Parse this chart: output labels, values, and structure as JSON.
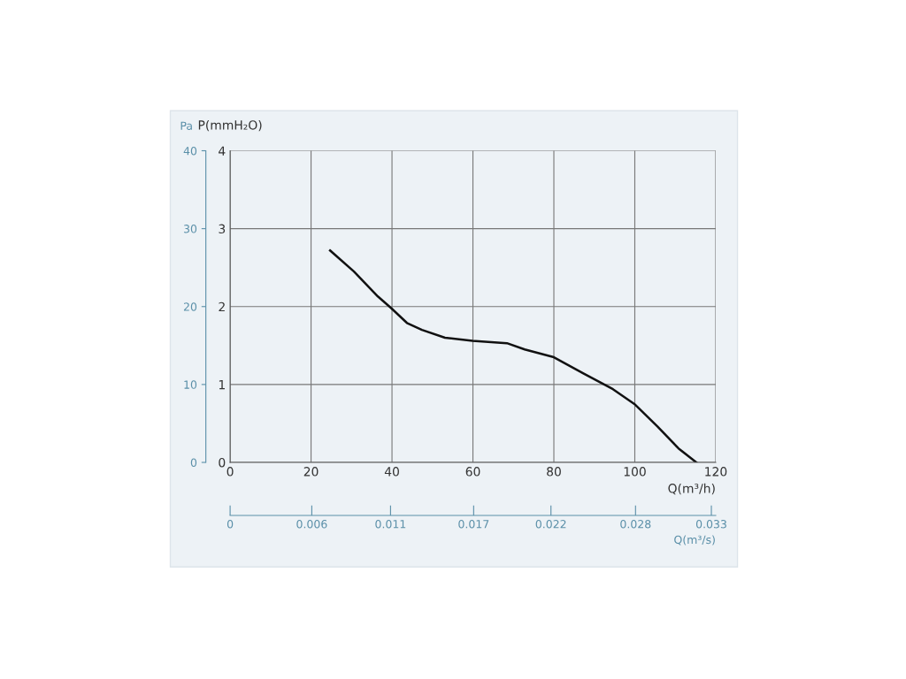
{
  "chart_data": {
    "type": "line",
    "xlabel": "Q(m³/h)",
    "ylabel": "P(mmH₂O)",
    "y2label": "Pa",
    "x2label": "Q(m³/s)",
    "x": [
      24.7,
      30.6,
      36.5,
      39.8,
      43.7,
      47.4,
      53.1,
      59.9,
      68.4,
      72.8,
      80.0,
      87.4,
      94.6,
      99.9,
      105.6,
      110.8,
      115.2
    ],
    "series": [
      {
        "color": "#111111",
        "values": [
          2.72,
          2.45,
          2.13,
          1.98,
          1.79,
          1.7,
          1.6,
          1.56,
          1.53,
          1.45,
          1.35,
          1.14,
          0.94,
          0.75,
          0.46,
          0.18,
          0.0
        ]
      }
    ],
    "xlim": [
      0,
      120
    ],
    "xticks": [
      0,
      20,
      40,
      60,
      80,
      100,
      120
    ],
    "ylim": [
      0,
      4
    ],
    "yticks": [
      0,
      1,
      2,
      3,
      4
    ],
    "y2lim": [
      0,
      40
    ],
    "y2ticks": [
      0,
      10,
      20,
      30,
      40
    ],
    "x2lim": [
      0,
      0.0333
    ],
    "x2ticks": [
      0,
      {
        "value": 0.0056,
        "label": "0.006"
      },
      0.011,
      {
        "value": 0.0167,
        "label": "0.017"
      },
      0.022,
      {
        "value": 0.0278,
        "label": "0.028"
      },
      0.033
    ],
    "grid": true,
    "marker": "none",
    "line_style": "solid"
  }
}
